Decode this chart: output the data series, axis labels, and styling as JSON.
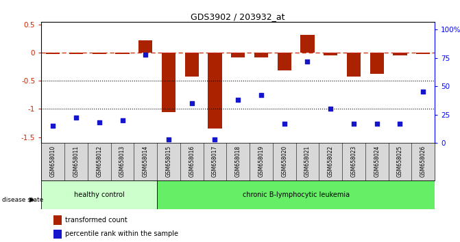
{
  "title": "GDS3902 / 203932_at",
  "samples": [
    "GSM658010",
    "GSM658011",
    "GSM658012",
    "GSM658013",
    "GSM658014",
    "GSM658015",
    "GSM658016",
    "GSM658017",
    "GSM658018",
    "GSM658019",
    "GSM658020",
    "GSM658021",
    "GSM658022",
    "GSM658023",
    "GSM658024",
    "GSM658025",
    "GSM658026"
  ],
  "bar_values": [
    -0.02,
    -0.02,
    -0.02,
    -0.02,
    0.22,
    -1.05,
    -0.42,
    -1.35,
    -0.08,
    -0.08,
    -0.32,
    0.32,
    -0.05,
    -0.42,
    -0.38,
    -0.05,
    -0.02
  ],
  "dot_values": [
    15,
    22,
    18,
    20,
    78,
    3,
    35,
    3,
    38,
    42,
    17,
    72,
    30,
    17,
    17,
    17,
    45
  ],
  "bar_color": "#aa2200",
  "dot_color": "#1515cc",
  "dashed_line_color": "#cc2200",
  "background_color": "#ffffff",
  "ylim_left": [
    -1.6,
    0.55
  ],
  "ylim_right": [
    0,
    107
  ],
  "yticks_left": [
    -1.5,
    -1.0,
    -0.5,
    0.0,
    0.5
  ],
  "ytick_labels_left": [
    "-1.5",
    "-1",
    "-0.5",
    "0",
    "0.5"
  ],
  "yticks_right": [
    0,
    25,
    50,
    75,
    100
  ],
  "ytick_labels_right": [
    "0",
    "25",
    "50",
    "75",
    "100%"
  ],
  "hline_y": [
    -0.5,
    -1.0
  ],
  "dashed_hline_y": 0.0,
  "group1_count": 5,
  "group1_label": "healthy control",
  "group2_label": "chronic B-lymphocytic leukemia",
  "group1_color": "#ccffcc",
  "group2_color": "#66ee66",
  "legend_bar_label": "transformed count",
  "legend_dot_label": "percentile rank within the sample",
  "disease_state_label": "disease state",
  "bar_width": 0.6
}
